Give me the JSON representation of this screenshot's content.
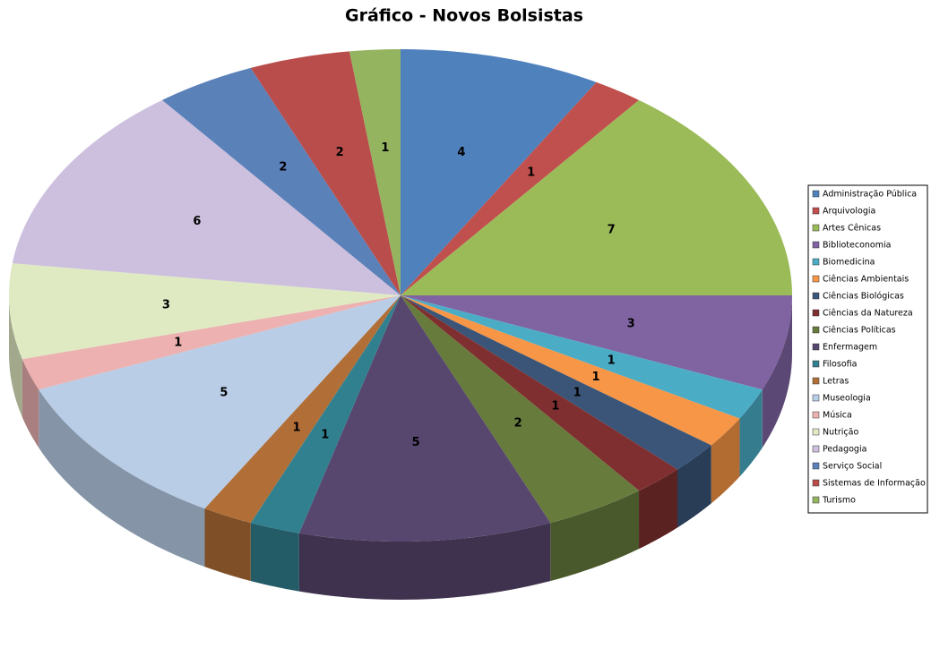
{
  "chart_data": {
    "type": "pie",
    "title": "Gráfico - Novos Bolsistas",
    "categories": [
      "Administração Pública",
      "Arquivologia",
      "Artes Cênicas",
      "Biblioteconomia",
      "Biomedicina",
      "Ciências Ambientais",
      "Ciências Biológicas",
      "Ciências da Natureza",
      "Ciências Políticas",
      "Enfermagem",
      "Filosofia",
      "Letras",
      "Museologia",
      "Música",
      "Nutrição",
      "Pedagogia",
      "Serviço Social",
      "Sistemas de Informação",
      "Turismo"
    ],
    "values": [
      4,
      1,
      7,
      3,
      1,
      1,
      1,
      1,
      2,
      5,
      1,
      1,
      5,
      1,
      3,
      6,
      2,
      2,
      1
    ],
    "colors": [
      "#4f81bd",
      "#c0504d",
      "#9bbb59",
      "#8064a2",
      "#4bacc6",
      "#f79646",
      "#3a5578",
      "#7f2f2f",
      "#677b3c",
      "#57466e",
      "#31808f",
      "#b16f37",
      "#b9cde6",
      "#ecb1b0",
      "#dfeac3",
      "#cdc0de",
      "#5b81b9",
      "#b94d4b",
      "#94b45f"
    ],
    "legend": "right"
  }
}
